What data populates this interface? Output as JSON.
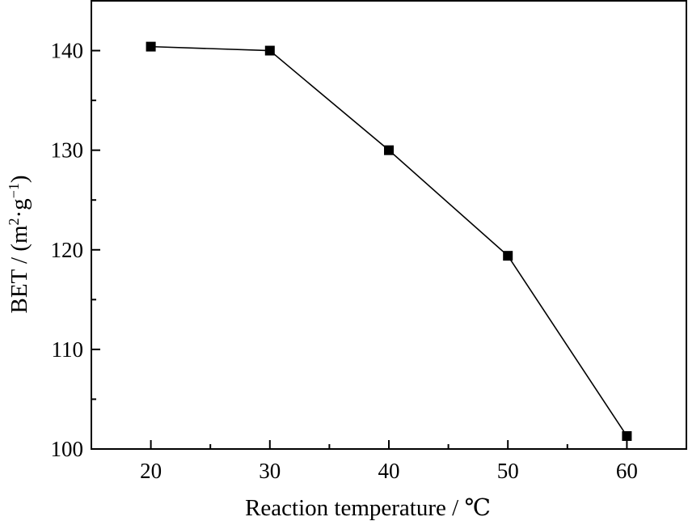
{
  "chart_data": {
    "type": "line",
    "title": "",
    "xlabel": "Reaction temperature / ℃",
    "ylabel_main": "BET / (m",
    "ylabel_sup1": "2",
    "ylabel_mid": "·g",
    "ylabel_sup2": "−1",
    "ylabel_end": ")",
    "xlim": [
      15,
      65
    ],
    "ylim": [
      100,
      145
    ],
    "x_ticks": [
      20,
      30,
      40,
      50,
      60
    ],
    "y_ticks": [
      100,
      110,
      120,
      130,
      140
    ],
    "x_tick_labels": [
      "20",
      "30",
      "40",
      "50",
      "60"
    ],
    "y_tick_labels": [
      "100",
      "110",
      "120",
      "130",
      "140"
    ],
    "grid": false,
    "legend": "none",
    "series": [
      {
        "x": [
          20,
          30,
          40,
          50,
          60
        ],
        "values": [
          140.4,
          140.0,
          130.0,
          119.4,
          101.3
        ],
        "color": "#000000",
        "marker": "square"
      }
    ]
  }
}
